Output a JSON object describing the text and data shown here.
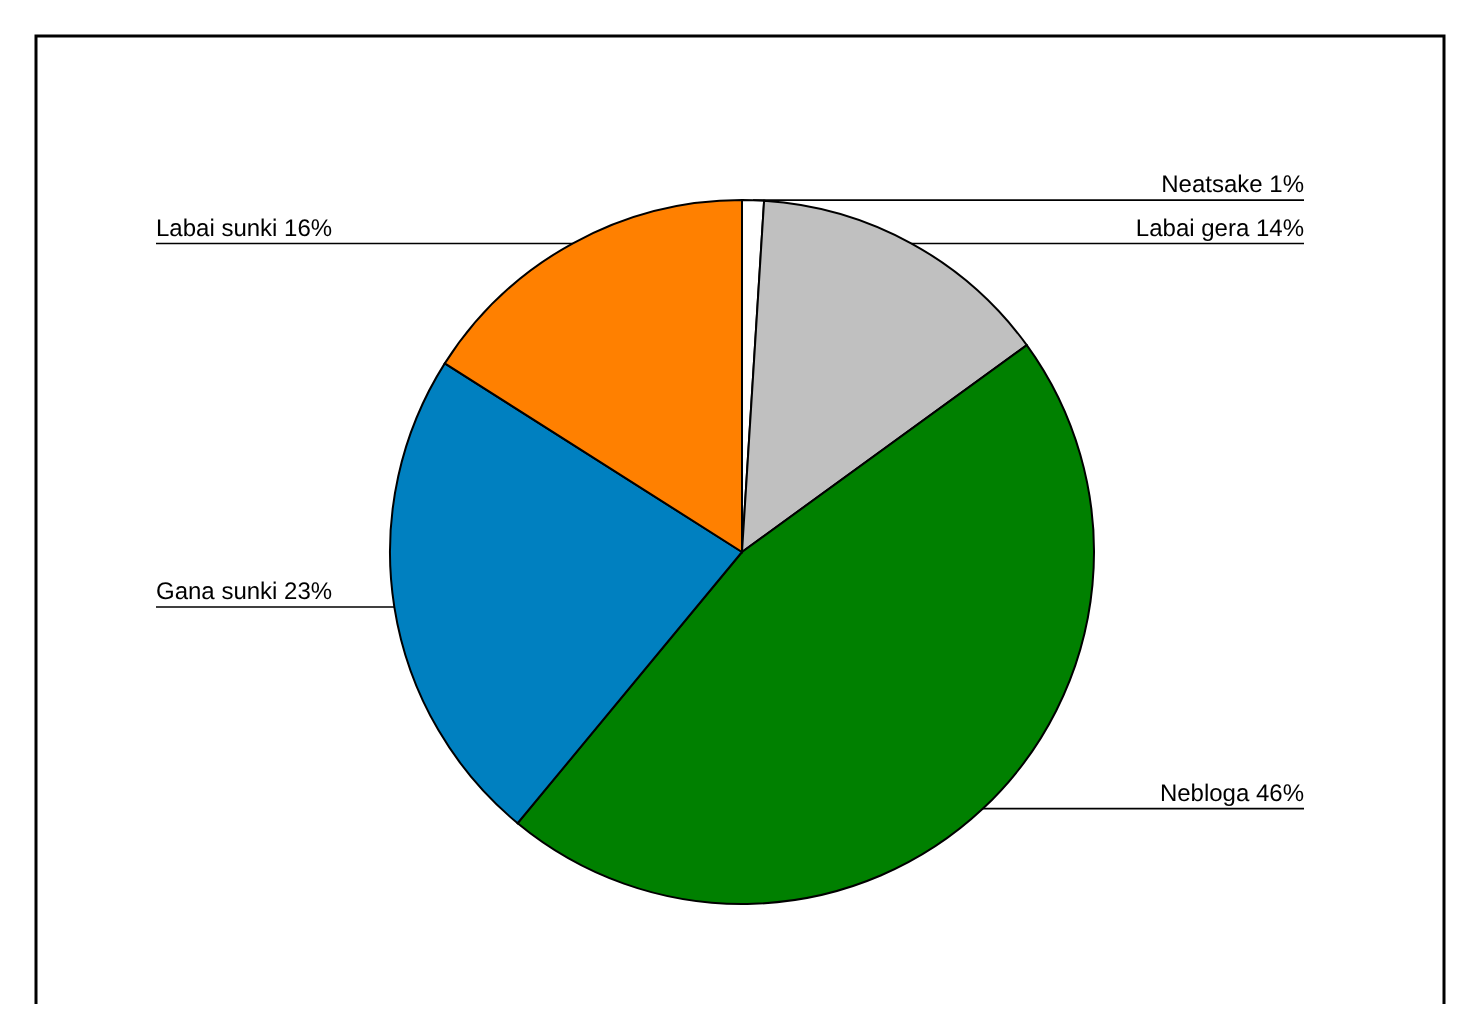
{
  "chart_data": {
    "type": "pie",
    "categories": [
      "Neatsake",
      "Labai gera",
      "Nebloga",
      "Gana sunki",
      "Labai sunki"
    ],
    "values": [
      1,
      14,
      46,
      23,
      16
    ],
    "value_labels": [
      "1%",
      "14%",
      "46%",
      "23%",
      "16%"
    ],
    "colors": [
      "#ffffff",
      "#c0c0c0",
      "#008000",
      "#0080c0",
      "#ff8000"
    ],
    "legend": false
  }
}
